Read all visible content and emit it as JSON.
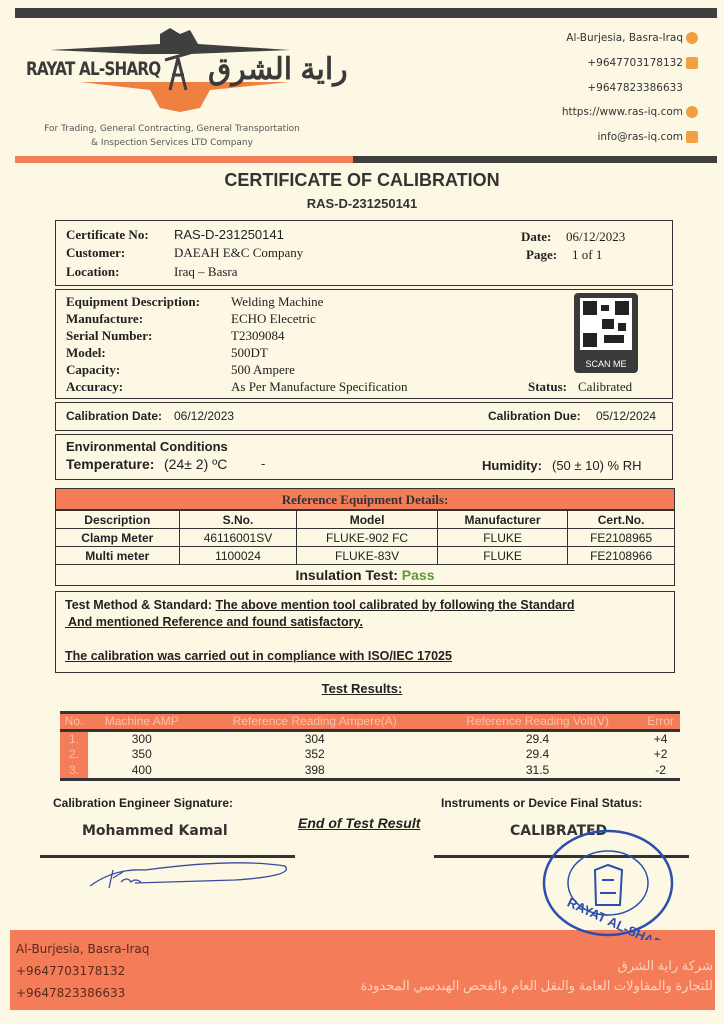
{
  "header": {
    "company_en": "RAYAT AL-SHARQ",
    "company_ar": "راية الشرق",
    "tagline_1": "For Trading, General Contracting, General Transportation",
    "tagline_2": "& Inspection Services LTD Company",
    "address": "Al-Burjesia, Basra-Iraq",
    "phone_1": "+9647703178132",
    "phone_2": "+9647823386633",
    "website": "https://www.ras-iq.com",
    "email": "info@ras-iq.com"
  },
  "title": "CERTIFICATE OF CALIBRATION",
  "cert_id": "RAS-D-231250141",
  "info": {
    "cert_no_label": "Certificate No:",
    "cert_no": "RAS-D-231250141",
    "customer_label": "Customer:",
    "customer": "DAEAH E&C Company",
    "location_label": "Location:",
    "location": "Iraq – Basra",
    "date_label": "Date:",
    "date": "06/12/2023",
    "page_label": "Page:",
    "page": "1 of 1"
  },
  "equipment": {
    "desc_label": "Equipment Description:",
    "desc": "Welding Machine",
    "mfr_label": "Manufacture:",
    "mfr": "ECHO Elecetric",
    "serial_label": "Serial Number:",
    "serial": "T2309084",
    "model_label": "Model:",
    "model": "500DT",
    "capacity_label": "Capacity:",
    "capacity": "500 Ampere",
    "accuracy_label": "Accuracy:",
    "accuracy": "As Per Manufacture Specification",
    "status_label": "Status:",
    "status": "Calibrated",
    "qr_caption": "SCAN ME"
  },
  "dates": {
    "cal_label": "Calibration Date:",
    "cal": "06/12/2023",
    "due_label": "Calibration Due:",
    "due": "05/12/2024"
  },
  "env": {
    "title": "Environmental Conditions",
    "temp_label": "Temperature:",
    "temp": "(24± 2) ºC",
    "dash": "-",
    "hum_label": "Humidity:",
    "hum": "(50 ± 10) % RH"
  },
  "reference": {
    "title": "Reference Equipment Details:",
    "headers": [
      "Description",
      "S.No.",
      "Model",
      "Manufacturer",
      "Cert.No."
    ],
    "rows": [
      [
        "Clamp Meter",
        "46116001SV",
        "FLUKE-902 FC",
        "FLUKE",
        "FE2108965"
      ],
      [
        "Multi meter",
        "1100024",
        "FLUKE-83V",
        "FLUKE",
        "FE2108966"
      ]
    ],
    "insulation_label": "Insulation Test:",
    "insulation": "Pass"
  },
  "method": {
    "label": "Test Method & Standard:",
    "line1": "The above mention tool calibrated by following the Standard",
    "line2": " And mentioned Reference and found satisfactory.",
    "compliance": "The calibration was carried out in compliance with ISO/IEC 17025"
  },
  "results": {
    "title": "Test Results:",
    "headers": [
      "No.",
      "Machine AMP",
      "Reference Reading Ampere(A)",
      "Reference Reading Volt(V)",
      "Error"
    ],
    "rows": [
      [
        "1.",
        "300",
        "304",
        "29.4",
        "+4"
      ],
      [
        "2.",
        "350",
        "352",
        "29.4",
        "+2"
      ],
      [
        "3.",
        "400",
        "398",
        "31.5",
        "-2"
      ]
    ]
  },
  "signature": {
    "engineer_label": "Calibration Engineer Signature:",
    "engineer": "Mohammed Kamal",
    "end": "End of Test Result",
    "status_label": "Instruments or Device Final Status:",
    "status": "CALIBRATED",
    "stamp_text": "RAYAT AL-SHARQ Co."
  },
  "footer": {
    "address": "Al-Burjesia, Basra-Iraq",
    "phone_1": "+9647703178132",
    "phone_2": "+9647823386633",
    "ar_1": "شركة راية الشرق",
    "ar_2": "للتجارة والمقاولات العامة والنقل العام والفحص الهندسي المحدودة"
  },
  "colors": {
    "orange": "#f47c58",
    "dark": "#3f3f3f",
    "pass": "#5a9a3a",
    "stamp": "#2a4fb0"
  }
}
